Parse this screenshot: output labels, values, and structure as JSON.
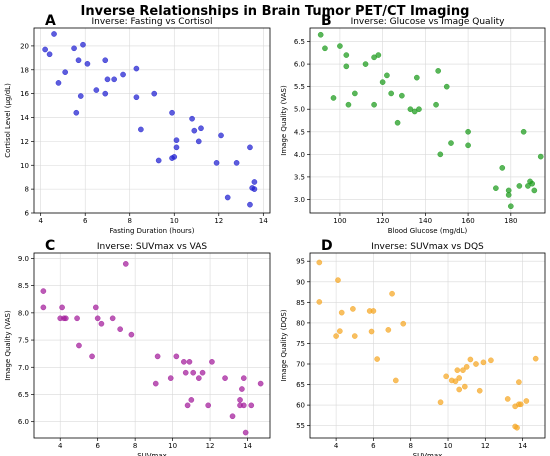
{
  "figure_title": "Inverse Relationships in Brain Tumor PET/CT Imaging",
  "chart_data": [
    {
      "type": "scatter",
      "label": "A",
      "title": "Inverse: Fasting vs Cortisol",
      "xlabel": "Fasting Duration (hours)",
      "ylabel": "Cortisol Level (μg/dL)",
      "xlim": [
        3.7,
        14.3
      ],
      "ylim": [
        6,
        21.5
      ],
      "xticks": [
        4,
        6,
        8,
        10,
        12,
        14
      ],
      "yticks": [
        6,
        8,
        10,
        12,
        14,
        16,
        18,
        20
      ],
      "grid": true,
      "color": "#1f1fd0",
      "x": [
        4.2,
        4.6,
        4.8,
        5.1,
        5.5,
        5.6,
        5.8,
        5.9,
        6.1,
        4.4,
        5.7,
        6.5,
        6.9,
        6.9,
        7.3,
        7.0,
        8.3,
        7.7,
        8.3,
        9.1,
        8.5,
        9.9,
        10.1,
        9.3,
        9.9,
        10.0,
        10.1,
        10.9,
        10.8,
        11.1,
        11.2,
        11.9,
        12.1,
        12.4,
        12.8,
        13.4,
        13.6,
        13.5,
        13.6,
        13.4
      ],
      "y": [
        19.7,
        21.0,
        16.9,
        17.8,
        19.8,
        14.4,
        15.8,
        20.1,
        18.5,
        19.3,
        18.8,
        16.3,
        18.8,
        16.0,
        17.2,
        17.2,
        18.1,
        17.6,
        15.7,
        16.0,
        13.0,
        14.4,
        12.1,
        10.4,
        10.6,
        10.7,
        11.5,
        12.9,
        13.9,
        12.0,
        13.1,
        10.2,
        12.5,
        7.3,
        10.2,
        11.5,
        8.6,
        8.1,
        8.0,
        6.7
      ]
    },
    {
      "type": "scatter",
      "label": "B",
      "title": "Inverse: Glucose vs Image Quality",
      "xlabel": "Blood Glucose (mg/dL)",
      "ylabel": "Image Quality (VAS)",
      "xlim": [
        86,
        196
      ],
      "ylim": [
        2.7,
        6.8
      ],
      "xticks": [
        100,
        120,
        140,
        160,
        180
      ],
      "yticks": [
        3.0,
        3.5,
        4.0,
        4.5,
        5.0,
        5.5,
        6.0,
        6.5
      ],
      "grid": true,
      "color": "#1a9a1a",
      "x": [
        91,
        93,
        97,
        100,
        103,
        104,
        107,
        112,
        116,
        118,
        120,
        122,
        124,
        127,
        129,
        133,
        135,
        136,
        137,
        145,
        146,
        147,
        150,
        152,
        160,
        160,
        173,
        176,
        179,
        179,
        180,
        184,
        186,
        189,
        191,
        194,
        188,
        190,
        103,
        116
      ],
      "y": [
        6.65,
        6.35,
        5.25,
        6.4,
        6.2,
        5.1,
        5.35,
        6.0,
        5.1,
        6.2,
        5.6,
        5.75,
        5.35,
        4.7,
        5.3,
        5.0,
        4.95,
        5.7,
        5.0,
        5.1,
        5.85,
        4.0,
        5.5,
        4.25,
        4.5,
        4.2,
        3.25,
        3.7,
        3.2,
        3.1,
        2.85,
        3.3,
        4.5,
        3.4,
        3.2,
        3.95,
        3.3,
        3.35,
        5.95,
        6.15
      ]
    },
    {
      "type": "scatter",
      "label": "C",
      "title": "Inverse: SUVmax vs VAS",
      "xlabel": "SUVmax",
      "ylabel": "Image Quality (VAS)",
      "xlim": [
        2.6,
        15.2
      ],
      "ylim": [
        5.7,
        9.1
      ],
      "xticks": [
        4,
        6,
        8,
        10,
        12,
        14
      ],
      "yticks": [
        6.0,
        6.5,
        7.0,
        7.5,
        8.0,
        8.5,
        9.0
      ],
      "grid": true,
      "color": "#a21a9a",
      "x": [
        3.1,
        3.1,
        4.0,
        4.1,
        4.2,
        4.3,
        4.9,
        5.0,
        5.7,
        5.9,
        6.0,
        6.2,
        6.8,
        7.2,
        7.5,
        7.8,
        9.1,
        9.2,
        9.9,
        10.2,
        10.6,
        10.7,
        10.9,
        10.8,
        11.0,
        11.1,
        11.4,
        11.6,
        11.9,
        12.1,
        12.8,
        13.2,
        13.6,
        13.6,
        13.7,
        13.8,
        13.8,
        13.9,
        14.2,
        14.7
      ],
      "y": [
        8.4,
        8.1,
        7.9,
        8.1,
        7.9,
        7.9,
        7.9,
        7.4,
        7.2,
        8.1,
        7.9,
        7.8,
        7.9,
        7.7,
        8.9,
        7.6,
        6.7,
        7.2,
        6.8,
        7.2,
        7.1,
        6.9,
        7.1,
        6.3,
        6.4,
        6.9,
        6.8,
        6.9,
        6.3,
        7.1,
        6.8,
        6.1,
        6.3,
        6.4,
        6.6,
        6.3,
        6.8,
        5.8,
        6.3,
        6.7
      ]
    },
    {
      "type": "scatter",
      "label": "D",
      "title": "Inverse: SUVmax vs DQS",
      "xlabel": "SUVmax",
      "ylabel": "Image Quality (DQS)",
      "xlim": [
        2.6,
        15.2
      ],
      "ylim": [
        52,
        97
      ],
      "xticks": [
        4,
        6,
        8,
        10,
        12,
        14
      ],
      "yticks": [
        55,
        60,
        65,
        70,
        75,
        80,
        85,
        90,
        95
      ],
      "grid": true,
      "color": "#f5a623",
      "x": [
        3.1,
        3.1,
        4.0,
        4.1,
        4.2,
        4.3,
        4.9,
        5.0,
        5.8,
        5.9,
        6.0,
        6.2,
        6.8,
        7.0,
        7.2,
        7.6,
        9.6,
        9.9,
        10.2,
        10.4,
        10.5,
        10.6,
        10.6,
        10.8,
        10.9,
        11.0,
        11.2,
        11.5,
        11.7,
        11.9,
        12.3,
        13.2,
        13.6,
        13.6,
        13.7,
        13.8,
        13.8,
        13.9,
        14.2,
        14.7
      ],
      "y": [
        94.7,
        85.1,
        76.8,
        90.4,
        78.0,
        82.5,
        83.4,
        76.8,
        82.9,
        77.9,
        82.9,
        71.2,
        78.3,
        87.1,
        66.0,
        79.8,
        60.7,
        67.0,
        66.0,
        65.8,
        68.5,
        63.8,
        66.6,
        68.5,
        64.5,
        69.3,
        71.1,
        70.0,
        63.5,
        70.4,
        70.9,
        61.5,
        59.7,
        54.8,
        54.5,
        60.2,
        65.6,
        60.2,
        61.0,
        71.3
      ]
    }
  ]
}
